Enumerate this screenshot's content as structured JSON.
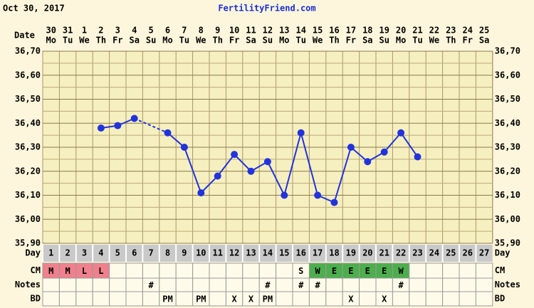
{
  "header": {
    "date": "Oct 30, 2017",
    "site": "FertilityFriend.com"
  },
  "chart_data": {
    "type": "line",
    "x_label": "Date",
    "dates": [
      "30",
      "31",
      "1",
      "2",
      "3",
      "4",
      "5",
      "6",
      "7",
      "8",
      "9",
      "10",
      "11",
      "12",
      "13",
      "14",
      "15",
      "16",
      "17",
      "18",
      "19",
      "20",
      "21",
      "22",
      "23",
      "24",
      "25"
    ],
    "weekdays": [
      "Mo",
      "Tu",
      "We",
      "Th",
      "Fr",
      "Sa",
      "Su",
      "Mo",
      "Tu",
      "We",
      "Th",
      "Fr",
      "Sa",
      "Su",
      "Mo",
      "Tu",
      "We",
      "Th",
      "Fr",
      "Sa",
      "Su",
      "Mo",
      "Tu",
      "We",
      "Th",
      "Fr",
      "Sa"
    ],
    "day_label": "Day",
    "days": [
      1,
      2,
      3,
      4,
      5,
      6,
      7,
      8,
      9,
      10,
      11,
      12,
      13,
      14,
      15,
      16,
      17,
      18,
      19,
      20,
      21,
      22,
      23,
      24,
      25,
      26,
      27
    ],
    "values": [
      null,
      null,
      null,
      36.38,
      36.39,
      36.42,
      null,
      36.36,
      36.3,
      36.11,
      36.18,
      36.27,
      36.2,
      36.24,
      36.1,
      36.36,
      36.1,
      36.07,
      36.3,
      36.24,
      36.28,
      36.36,
      36.26,
      null,
      null,
      null,
      null
    ],
    "color": "#2233dd",
    "ylim": [
      35.9,
      36.7
    ],
    "yticks": [
      {
        "value": 35.9,
        "label": "35,90"
      },
      {
        "value": 36.0,
        "label": "36,00"
      },
      {
        "value": 36.1,
        "label": "36,10"
      },
      {
        "value": 36.2,
        "label": "36,20"
      },
      {
        "value": 36.3,
        "label": "36,30"
      },
      {
        "value": 36.4,
        "label": "36,40"
      },
      {
        "value": 36.5,
        "label": "36,50"
      },
      {
        "value": 36.6,
        "label": "36,60"
      },
      {
        "value": 36.7,
        "label": "36,70"
      }
    ],
    "minor_yticks": [
      35.95,
      36.05,
      36.15,
      36.25,
      36.35,
      36.45,
      36.55,
      36.65
    ],
    "grid": true,
    "rows": [
      {
        "label": "CM",
        "cells": [
          "M",
          "M",
          "L",
          "L",
          null,
          null,
          null,
          null,
          null,
          null,
          null,
          null,
          null,
          null,
          null,
          "S",
          "W",
          "E",
          "E",
          "E",
          "E",
          "W",
          null,
          null,
          null,
          null,
          null
        ],
        "colors": {
          "M": "#f0808c",
          "L": "#f0808c",
          "W": "#4cae4c",
          "E": "#4cae4c"
        }
      },
      {
        "label": "Notes",
        "cells": [
          null,
          null,
          null,
          null,
          null,
          null,
          "#",
          null,
          null,
          null,
          null,
          null,
          null,
          "#",
          null,
          "#",
          "#",
          null,
          null,
          null,
          null,
          "#",
          null,
          null,
          null,
          null,
          null
        ]
      },
      {
        "label": "BD",
        "cells": [
          null,
          null,
          null,
          null,
          null,
          null,
          null,
          "PM",
          null,
          "PM",
          null,
          "X",
          "X",
          "PM",
          null,
          null,
          null,
          null,
          "X",
          null,
          "X",
          null,
          null,
          null,
          null,
          null,
          null
        ]
      }
    ]
  }
}
